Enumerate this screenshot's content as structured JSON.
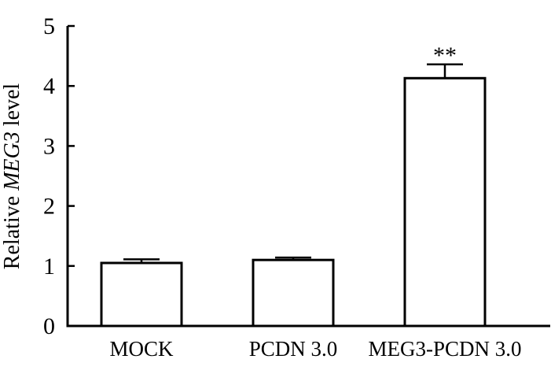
{
  "chart_data": {
    "type": "bar",
    "categories": [
      "MOCK",
      "PCDN 3.0",
      "MEG3-PCDN 3.0"
    ],
    "values": [
      1.05,
      1.1,
      4.13
    ],
    "errors": [
      0.06,
      0.04,
      0.23
    ],
    "annotations": [
      "",
      "",
      "**"
    ],
    "ylabel_prefix": "Relative ",
    "ylabel_gene": "MEG3",
    "ylabel_suffix": " level",
    "xlabel": "",
    "ylim": [
      0,
      5
    ],
    "yticks": [
      0,
      1,
      2,
      3,
      4,
      5
    ],
    "grid": false,
    "bar_fill": "#ffffff",
    "bar_stroke": "#000000"
  }
}
